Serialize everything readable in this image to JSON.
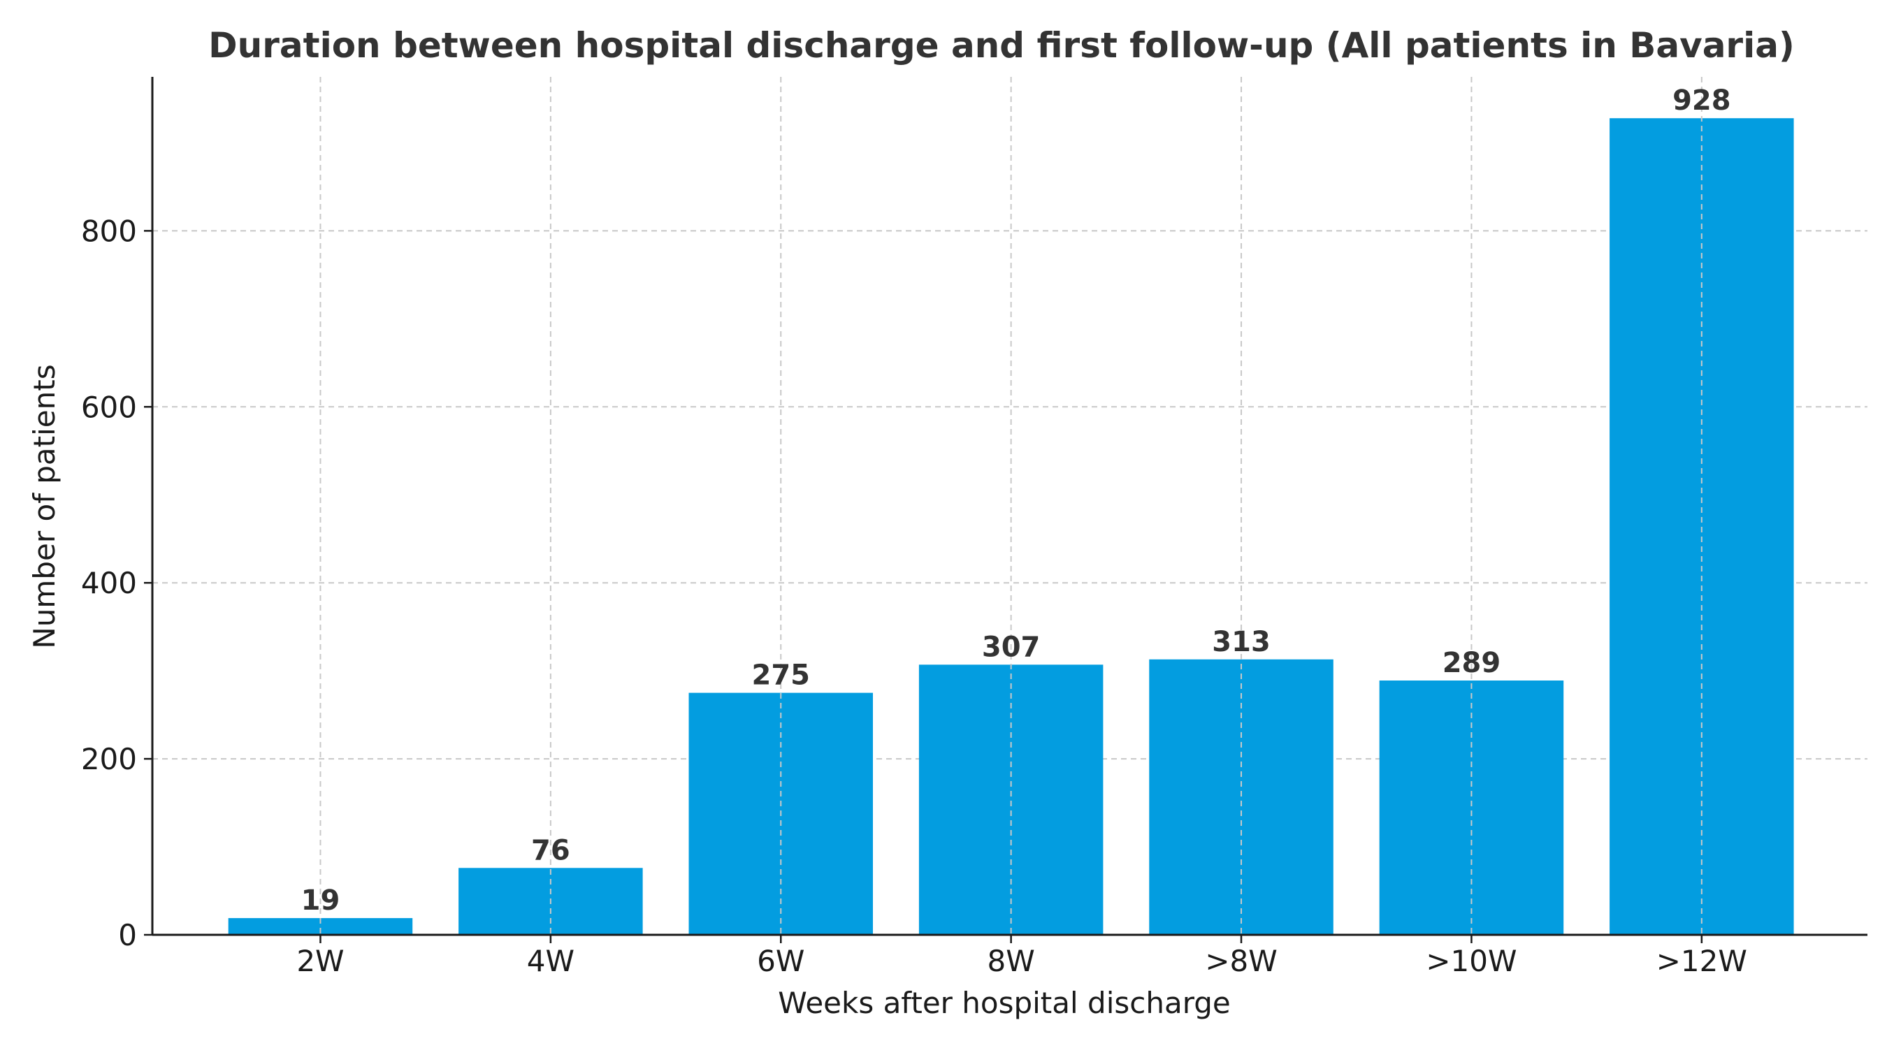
{
  "chart_data": {
    "type": "bar",
    "title": "Duration between hospital discharge and first follow-up (All patients in Bavaria)",
    "xlabel": "Weeks after hospital discharge",
    "ylabel": "Number of patients",
    "categories": [
      "2W",
      "4W",
      "6W",
      "8W",
      ">8W",
      ">10W",
      ">12W"
    ],
    "values": [
      19,
      76,
      275,
      307,
      313,
      289,
      928
    ],
    "data_labels": [
      "19",
      "76",
      "275",
      "307",
      "313",
      "289",
      "928"
    ],
    "ylim": [
      0,
      975
    ],
    "yticks": [
      0,
      200,
      400,
      600,
      800
    ],
    "ytick_labels": [
      "0",
      "200",
      "400",
      "600",
      "800"
    ],
    "grid": true,
    "bar_color": "#039de0",
    "legend": "none"
  }
}
